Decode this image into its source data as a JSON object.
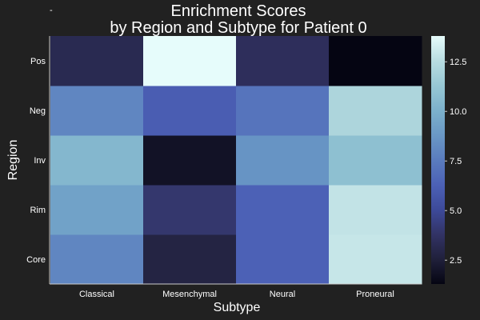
{
  "chart_data": {
    "type": "heatmap",
    "title_lines": [
      "Enrichment Scores",
      "by Region and Subtype for Patient 0"
    ],
    "xlabel": "Subtype",
    "ylabel": "Region",
    "x_categories": [
      "Classical",
      "Mesenchymal",
      "Neural",
      "Proneural"
    ],
    "y_categories": [
      "Core",
      "Rim",
      "Inv",
      "Neg",
      "Pos"
    ],
    "values": [
      [
        8.0,
        2.8,
        6.3,
        12.9
      ],
      [
        9.3,
        4.0,
        6.3,
        12.8
      ],
      [
        10.4,
        1.9,
        8.6,
        10.9
      ],
      [
        8.0,
        6.1,
        7.2,
        12.1
      ],
      [
        3.2,
        13.8,
        3.5,
        1.3
      ]
    ],
    "colorbar": {
      "range": [
        1.3,
        13.8
      ],
      "ticks": [
        2.5,
        5.0,
        7.5,
        10.0,
        12.5
      ],
      "tick_labels": [
        "2.5",
        "5.0",
        "7.5",
        "10.0",
        "12.5"
      ],
      "colormap": [
        "#050512",
        "#20203b",
        "#323365",
        "#3d4a9a",
        "#4c61b6",
        "#5a7cbe",
        "#6a98c5",
        "#7cb1cc",
        "#97c7d4",
        "#b9dde1",
        "#e6fcfb"
      ]
    },
    "legend_mark": "-",
    "colors": {
      "background": "#212121",
      "axis_line": "#cccccc",
      "text": "#ffffff"
    }
  }
}
